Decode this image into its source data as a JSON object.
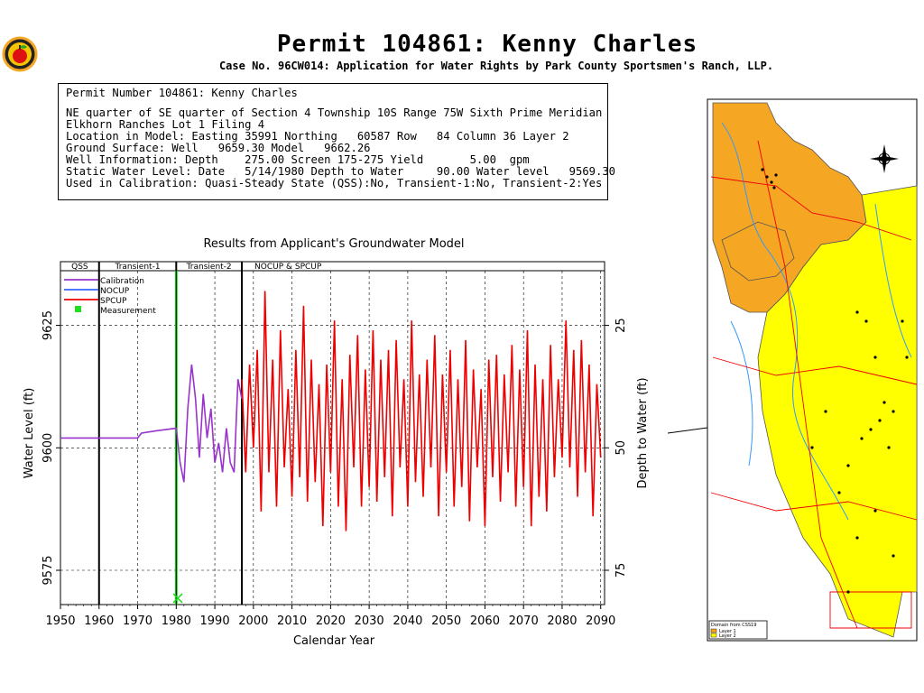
{
  "header": {
    "title": "Permit  104861:   Kenny Charles",
    "subtitle": "Case No. 96CW014: Application for Water Rights by Park County Sportsmen's Ranch, LLP."
  },
  "logo": {
    "icon": "apple-logo-icon"
  },
  "info": {
    "permit": "Permit Number 104861: Kenny Charles",
    "legal": "NE quarter of SE quarter of Section 4 Township 10S Range 75W Sixth Prime Meridian",
    "subdivision": "Elkhorn Ranches Lot 1 Filing 4",
    "location": "Location in Model: Easting 35991 Northing   60587 Row   84 Column 36 Layer 2",
    "surface": "Ground Surface: Well   9659.30 Model   9662.26",
    "well": "Well Information: Depth    275.00 Screen 175-275 Yield       5.00  gpm",
    "static": "Static Water Level: Date   5/14/1980 Depth to Water     90.00 Water level   9569.30",
    "calibration": "Used in Calibration: Quasi-Steady State (QSS):No, Transient-1:No, Transient-2:Yes"
  },
  "chart_data": {
    "type": "line",
    "title": "Results from Applicant's Groundwater Model",
    "xlabel": "Calendar Year",
    "ylabel": "Water Level (ft)",
    "y2label": "Depth to Water (ft)",
    "xlim": [
      1950,
      2091
    ],
    "ylim": [
      9568,
      9638
    ],
    "xticks": [
      "1950",
      "1960",
      "1970",
      "1980",
      "1990",
      "2000",
      "2010",
      "2020",
      "2030",
      "2040",
      "2050",
      "2060",
      "2070",
      "2080",
      "2090"
    ],
    "yticks": [
      "9575",
      "9600",
      "9625"
    ],
    "y2ticks": [
      "25",
      "50",
      "75"
    ],
    "periods": [
      {
        "label": "QSS",
        "start": 1950,
        "end": 1960
      },
      {
        "label": "Transient-1",
        "start": 1960,
        "end": 1980
      },
      {
        "label": "Transient-2",
        "start": 1980,
        "end": 1997
      },
      {
        "label": "NOCUP  &  SPCUP",
        "start": 1997,
        "end": 2091
      }
    ],
    "legend": {
      "position": "top-left",
      "items": [
        {
          "name": "Calibration",
          "color": "#9933cc"
        },
        {
          "name": "NOCUP",
          "color": "#3366ff"
        },
        {
          "name": "SPCUP",
          "color": "#ee0000"
        },
        {
          "name": "Measurement",
          "color": "#22dd22"
        }
      ]
    },
    "series": [
      {
        "name": "Calibration",
        "color": "#9933cc",
        "x": [
          1950,
          1970,
          1971,
          1975,
          1980,
          1981,
          1982,
          1983,
          1984,
          1985,
          1986,
          1987,
          1988,
          1989,
          1990,
          1991,
          1992,
          1993,
          1994,
          1995,
          1996,
          1997
        ],
        "y": [
          9602,
          9602,
          9603,
          9603.5,
          9604,
          9597,
          9593,
          9608,
          9617,
          9610,
          9598,
          9611,
          9602,
          9608,
          9597,
          9601,
          9595,
          9604,
          9597,
          9595,
          9614,
          9610
        ]
      },
      {
        "name": "SPCUP",
        "color": "#ee0000",
        "x": [
          1997,
          1998,
          1999,
          2000,
          2001,
          2002,
          2003,
          2004,
          2005,
          2006,
          2007,
          2008,
          2009,
          2010,
          2011,
          2012,
          2013,
          2014,
          2015,
          2016,
          2017,
          2018,
          2019,
          2020,
          2021,
          2022,
          2023,
          2024,
          2025,
          2026,
          2027,
          2028,
          2029,
          2030,
          2031,
          2032,
          2033,
          2034,
          2035,
          2036,
          2037,
          2038,
          2039,
          2040,
          2041,
          2042,
          2043,
          2044,
          2045,
          2046,
          2047,
          2048,
          2049,
          2050,
          2051,
          2052,
          2053,
          2054,
          2055,
          2056,
          2057,
          2058,
          2059,
          2060,
          2061,
          2062,
          2063,
          2064,
          2065,
          2066,
          2067,
          2068,
          2069,
          2070,
          2071,
          2072,
          2073,
          2074,
          2075,
          2076,
          2077,
          2078,
          2079,
          2080,
          2081,
          2082,
          2083,
          2084,
          2085,
          2086,
          2087,
          2088,
          2089,
          2090
        ],
        "y": [
          9614,
          9595,
          9617,
          9600,
          9620,
          9587,
          9632,
          9595,
          9618,
          9588,
          9624,
          9596,
          9612,
          9590,
          9620,
          9594,
          9629,
          9589,
          9618,
          9593,
          9613,
          9584,
          9617,
          9595,
          9626,
          9588,
          9614,
          9583,
          9619,
          9596,
          9623,
          9588,
          9616,
          9592,
          9624,
          9589,
          9618,
          9594,
          9620,
          9586,
          9622,
          9596,
          9614,
          9588,
          9626,
          9593,
          9615,
          9590,
          9618,
          9596,
          9623,
          9586,
          9615,
          9595,
          9620,
          9588,
          9614,
          9592,
          9622,
          9585,
          9616,
          9596,
          9612,
          9584,
          9618,
          9594,
          9619,
          9589,
          9615,
          9595,
          9621,
          9588,
          9616,
          9592,
          9624,
          9584,
          9617,
          9590,
          9614,
          9587,
          9621,
          9594,
          9614,
          9598,
          9626,
          9596,
          9620,
          9590,
          9622,
          9595,
          9617,
          9586,
          9613,
          9598
        ]
      },
      {
        "name": "Measurement",
        "color": "#22dd22",
        "x": [
          1980.4
        ],
        "y": [
          9569.3
        ]
      }
    ]
  },
  "map": {
    "title": "Domain from CSS19",
    "legend": [
      "Layer 1",
      "Layer 2"
    ],
    "colors": {
      "layer1": "#f5a623",
      "layer2": "#ffff00",
      "roads": "#ee0000",
      "streams": "#3399ff",
      "wells": "#000000"
    },
    "compass_icon": "compass-rose-icon"
  }
}
